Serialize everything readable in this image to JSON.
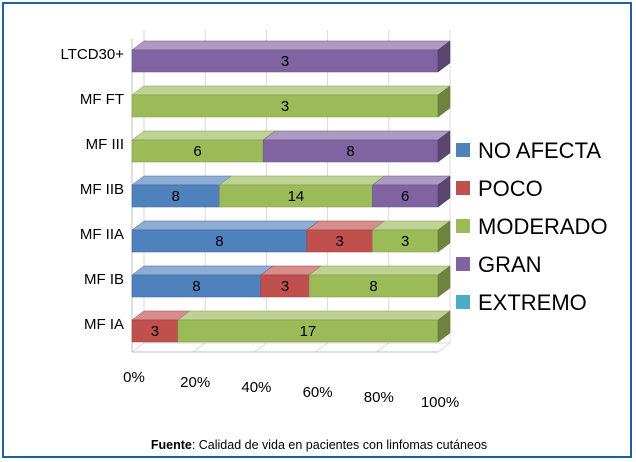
{
  "chart_data": {
    "type": "bar",
    "orientation": "horizontal",
    "stacked": true,
    "percent_stacked": true,
    "three_d": true,
    "categories": [
      "LTCD30+",
      "MF FT",
      "MF III",
      "MF IIB",
      "MF IIA",
      "MF IB",
      "MF IA"
    ],
    "series": [
      {
        "name": "NO AFECTA",
        "color": "#4f81bd",
        "values": [
          0,
          0,
          0,
          8,
          8,
          8,
          0
        ]
      },
      {
        "name": "POCO",
        "color": "#c0504d",
        "values": [
          0,
          0,
          0,
          0,
          3,
          3,
          3
        ]
      },
      {
        "name": "MODERADO",
        "color": "#9bbb59",
        "values": [
          0,
          3,
          6,
          14,
          3,
          8,
          17
        ]
      },
      {
        "name": "GRAN",
        "color": "#8064a2",
        "values": [
          3,
          0,
          8,
          6,
          0,
          0,
          0
        ]
      },
      {
        "name": "EXTREMO",
        "color": "#4bacc6",
        "values": [
          0,
          0,
          0,
          0,
          0,
          0,
          0
        ]
      }
    ],
    "x_ticks": [
      "0%",
      "20%",
      "40%",
      "60%",
      "80%",
      "100%"
    ],
    "xlim": [
      0,
      100
    ],
    "legend_position": "right",
    "grid": true
  },
  "source": {
    "label": "Fuente",
    "text": ": Calidad de vida en pacientes con linfomas cutáneos"
  }
}
